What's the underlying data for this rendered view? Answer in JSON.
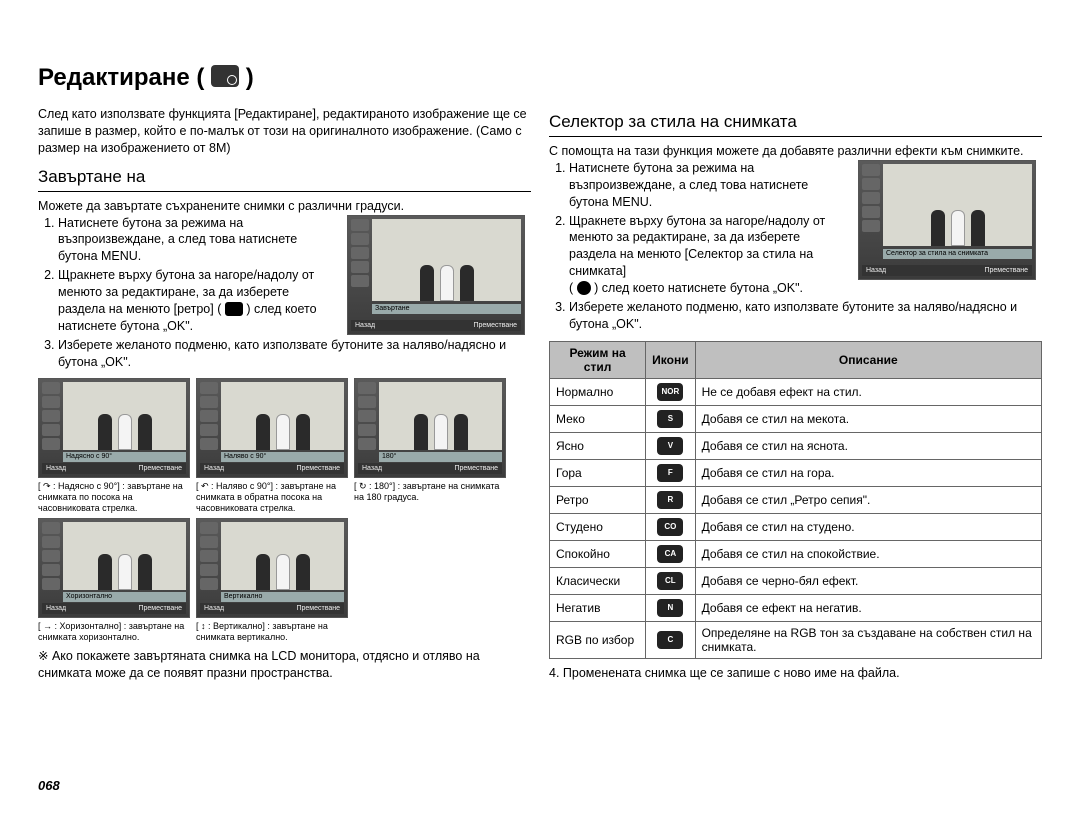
{
  "page_number": "068",
  "title": "Редактиране (",
  "title_close": ")",
  "left": {
    "intro": "След като използвате функцията [Редактиране], редактираното изображение ще се запише в размер, който е по-малък от този на оригиналното изображение. (Само с размер на изображението от 8M)",
    "section_heading": "Завъртане на",
    "lead": "Можете да завъртате съхранените снимки с различни градуси.",
    "step1a": "Натиснете бутона за режима на възпроизвеждане, а след това натиснете бутона MENU.",
    "step2a": "Щракнете върху бутона за нагоре/надолу от менюто за редактиране, за да изберете раздела на менюто [ретро] (",
    "step2b": ") след което натиснете бутона „OK\".",
    "step3": "Изберете желаното подменю, като използвате бутоните за наляво/надясно и бутона „OK\".",
    "screen_caption_main": "Завъртане",
    "screen_back": "Назад",
    "screen_move": "Преместване",
    "thumbs": [
      {
        "bar": "Надясно с 90°",
        "cap": "[ ↷ : Надясно с 90°] : завъртане на снимката по посока на часовниковата стрелка."
      },
      {
        "bar": "Наляво с 90°",
        "cap": "[ ↶ : Наляво с 90°] : завъртане на снимката в обратна посока на часовниковата стрелка."
      },
      {
        "bar": "180°",
        "cap": "[ ↻ : 180°] : завъртане на снимката на 180 градуса."
      },
      {
        "bar": "Хоризонтално",
        "cap": "[ → : Хоризонтално] : завъртане на снимката хоризонтално."
      },
      {
        "bar": "Вертикално",
        "cap": "[ ↕ : Вертикално] : завъртане на снимката вертикално."
      }
    ],
    "note": "※ Ако покажете завъртяната снимка на LCD монитора, отдясно и отляво на снимката може да се появят празни пространства."
  },
  "right": {
    "section_heading": "Селектор за стила на снимката",
    "lead": "С помощта на тази функция можете да добавяте различни ефекти към снимките.",
    "step1": "Натиснете бутона за режима на възпроизвеждане, а след това натиснете бутона MENU.",
    "step2a": "Щракнете върху бутона за нагоре/надолу от менюто за редактиране, за да изберете раздела на менюто [Селектор за стила на снимката]",
    "step2b": "(",
    "step2c": ") след което натиснете бутона „OK\".",
    "step3": "Изберете желаното подменю, като използвате бутоните за наляво/надясно и бутона „OK\".",
    "screen_caption": "Селектор за стила на снимката",
    "screen_back": "Назад",
    "screen_move": "Преместване",
    "table": {
      "headers": [
        "Режим на стил",
        "Икони",
        "Описание"
      ],
      "rows": [
        {
          "mode": "Нормално",
          "icon": "NOR",
          "desc": "Не се добавя ефект на стил."
        },
        {
          "mode": "Меко",
          "icon": "S",
          "desc": "Добавя се стил на мекота."
        },
        {
          "mode": "Ясно",
          "icon": "V",
          "desc": "Добавя се стил на яснота."
        },
        {
          "mode": "Гора",
          "icon": "F",
          "desc": "Добавя се стил на гора."
        },
        {
          "mode": "Ретро",
          "icon": "R",
          "desc": "Добавя се стил „Ретро сепия\"."
        },
        {
          "mode": "Студено",
          "icon": "CO",
          "desc": "Добавя се стил на студено."
        },
        {
          "mode": "Спокойно",
          "icon": "CA",
          "desc": "Добавя се стил на спокойствие."
        },
        {
          "mode": "Класически",
          "icon": "CL",
          "desc": "Добавя се черно-бял ефект."
        },
        {
          "mode": "Негатив",
          "icon": "N",
          "desc": "Добавя се ефект на негатив."
        },
        {
          "mode": "RGB по избор",
          "icon": "C",
          "desc": "Определяне на RGB тон за създаване на собствен стил на снимката."
        }
      ]
    },
    "footer": "4. Променената снимка ще се запише с ново име на файла."
  }
}
